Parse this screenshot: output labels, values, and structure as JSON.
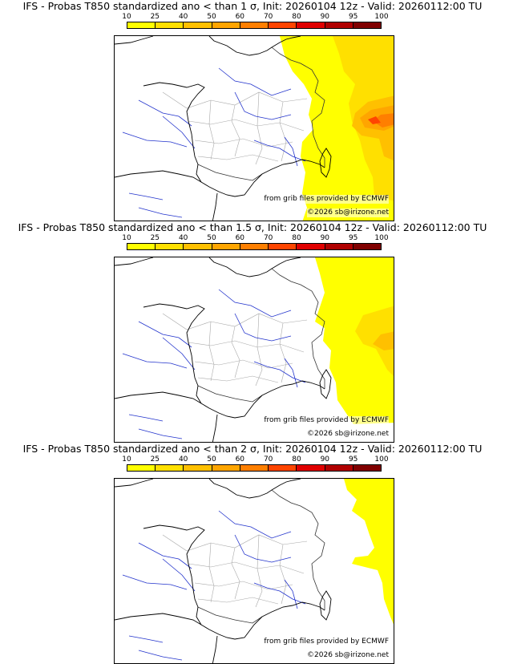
{
  "legend": {
    "ticks": [
      "10",
      "25",
      "40",
      "50",
      "60",
      "70",
      "80",
      "90",
      "95",
      "100"
    ],
    "colors": [
      "#ffff00",
      "#ffe000",
      "#ffc000",
      "#ffa500",
      "#ff7f00",
      "#ff4500",
      "#e00000",
      "#b00000",
      "#800000"
    ]
  },
  "panels": [
    {
      "title": "IFS - Probas T850  standardized ano < than 1 σ, Init: 20260104 12z - Valid: 20260112:00 TU",
      "extent": "large"
    },
    {
      "title": "IFS - Probas T850  standardized ano < than 1.5 σ, Init: 20260104 12z - Valid: 20260112:00 TU",
      "extent": "medium"
    },
    {
      "title": "IFS - Probas T850  standardized ano < than 2 σ, Init: 20260104 12z - Valid: 20260112:00 TU",
      "extent": "small"
    }
  ],
  "credits": {
    "source": "from grib files provided by ECMWF",
    "copyright": "©2026 sb@irizone.net"
  }
}
